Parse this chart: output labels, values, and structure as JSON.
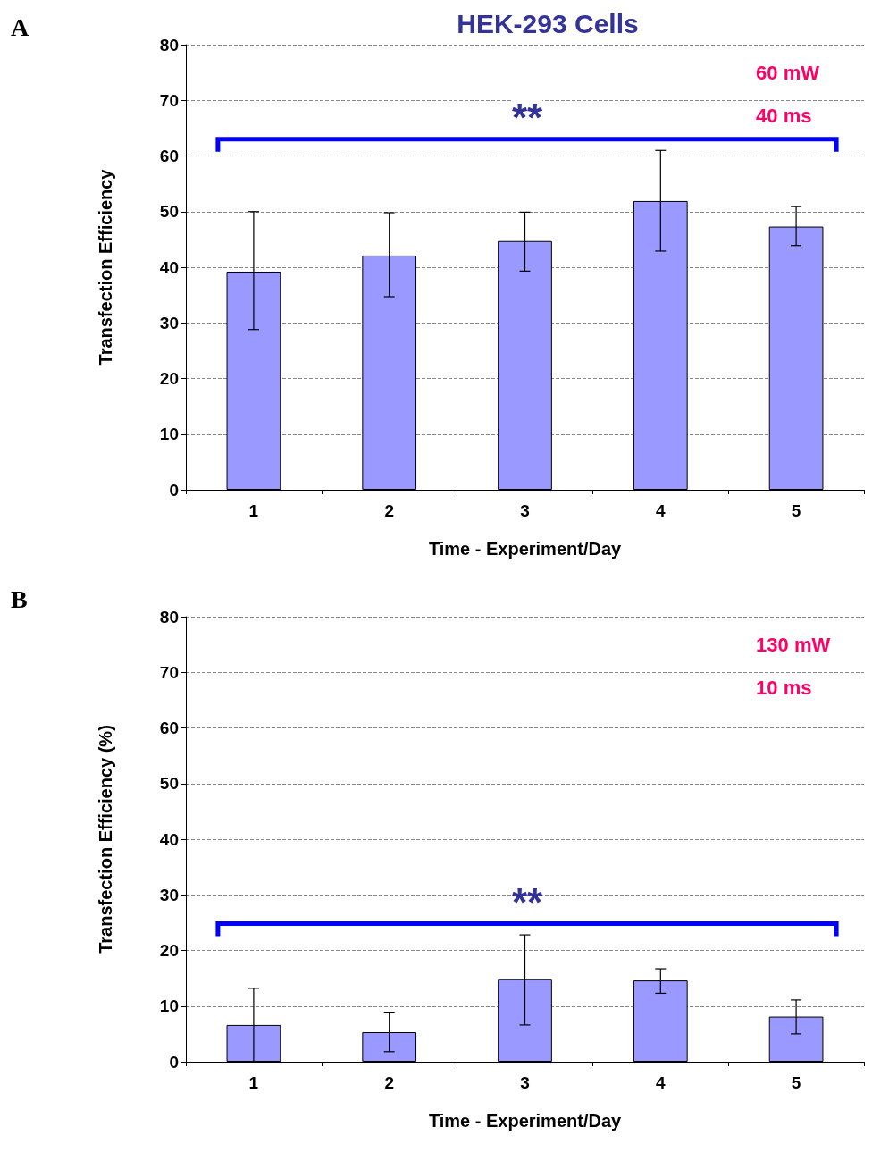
{
  "chart_data": [
    {
      "type": "bar",
      "title": "HEK-293 Cells",
      "xlabel": "Time - Experiment/Day",
      "ylabel": "Transfection Efficiency",
      "categories": [
        "1",
        "2",
        "3",
        "4",
        "5"
      ],
      "series": [
        {
          "color": "#9999ff",
          "values": [
            39.2,
            42.1,
            44.7,
            51.9,
            47.3
          ],
          "errors": [
            [
              28.8,
              50.0
            ],
            [
              34.7,
              49.8
            ],
            [
              39.3,
              49.9
            ],
            [
              42.9,
              61.0
            ],
            [
              43.9,
              50.9
            ]
          ]
        }
      ],
      "ylim": [
        0,
        80
      ],
      "yticks": [
        0,
        10,
        20,
        30,
        40,
        50,
        60,
        70,
        80
      ],
      "grid": "y",
      "line_style": "dashed",
      "annotations": [
        "A",
        "60 mW",
        "40 ms",
        "**"
      ]
    },
    {
      "type": "bar",
      "xlabel": "Time - Experiment/Day",
      "ylabel": "Transfection Efficiency (%)",
      "categories": [
        "1",
        "2",
        "3",
        "4",
        "5"
      ],
      "series": [
        {
          "color": "#9999ff",
          "values": [
            6.6,
            5.3,
            14.9,
            14.6,
            8.1
          ],
          "errors": [
            [
              0,
              13.2
            ],
            [
              1.8,
              8.9
            ],
            [
              6.6,
              22.8
            ],
            [
              12.3,
              16.7
            ],
            [
              5.0,
              11.1
            ]
          ]
        }
      ],
      "ylim": [
        0,
        80
      ],
      "yticks": [
        0,
        10,
        20,
        30,
        40,
        50,
        60,
        70,
        80
      ],
      "grid": "y",
      "line_style": "dashed",
      "annotations": [
        "B",
        "130 mW",
        "10 ms",
        "**"
      ]
    }
  ]
}
